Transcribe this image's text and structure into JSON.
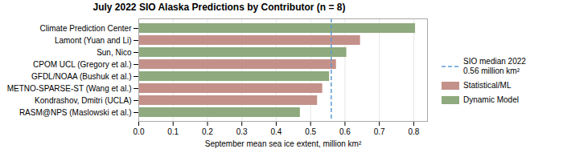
{
  "chart_data": {
    "type": "bar",
    "orientation": "horizontal",
    "title": "July 2022 SIO Alaska Predictions by Contributor (n = 8)",
    "xlabel": "September mean sea ice extent, million km²",
    "categories": [
      "Climate Prediction Center",
      "Lamont (Yuan and Li)",
      "Sun, Nico",
      "CPOM UCL (Gregory et al.)",
      "GFDL/NOAA (Bushuk et al.)",
      "METNO-SPARSE-ST (Wang et al.)",
      "Kondrashov, Dmitri (UCLA)",
      "RASM@NPS (Maslowski et al.)"
    ],
    "values": [
      0.805,
      0.645,
      0.605,
      0.575,
      0.555,
      0.535,
      0.52,
      0.47
    ],
    "colors": [
      "#8faa7e",
      "#c4918a",
      "#8faa7e",
      "#c4918a",
      "#8faa7e",
      "#c4918a",
      "#c4918a",
      "#8faa7e"
    ],
    "median_line": {
      "value": 0.56,
      "color": "#5b9bd5",
      "line_style": "dashed",
      "name": "SIO median 2022\n0.56 million km²"
    },
    "legend_entries": [
      {
        "name": "Statistical/ML",
        "color": "#c4918a"
      },
      {
        "name": "Dynamic Model",
        "color": "#8faa7e"
      }
    ],
    "xlim": [
      0.0,
      0.84
    ],
    "xticks": [
      {
        "value": 0,
        "label": "0.0"
      },
      0.1,
      0.2,
      0.3,
      0.4,
      0.5,
      0.6,
      0.7,
      0.8
    ],
    "grid": true,
    "legend": "right"
  }
}
